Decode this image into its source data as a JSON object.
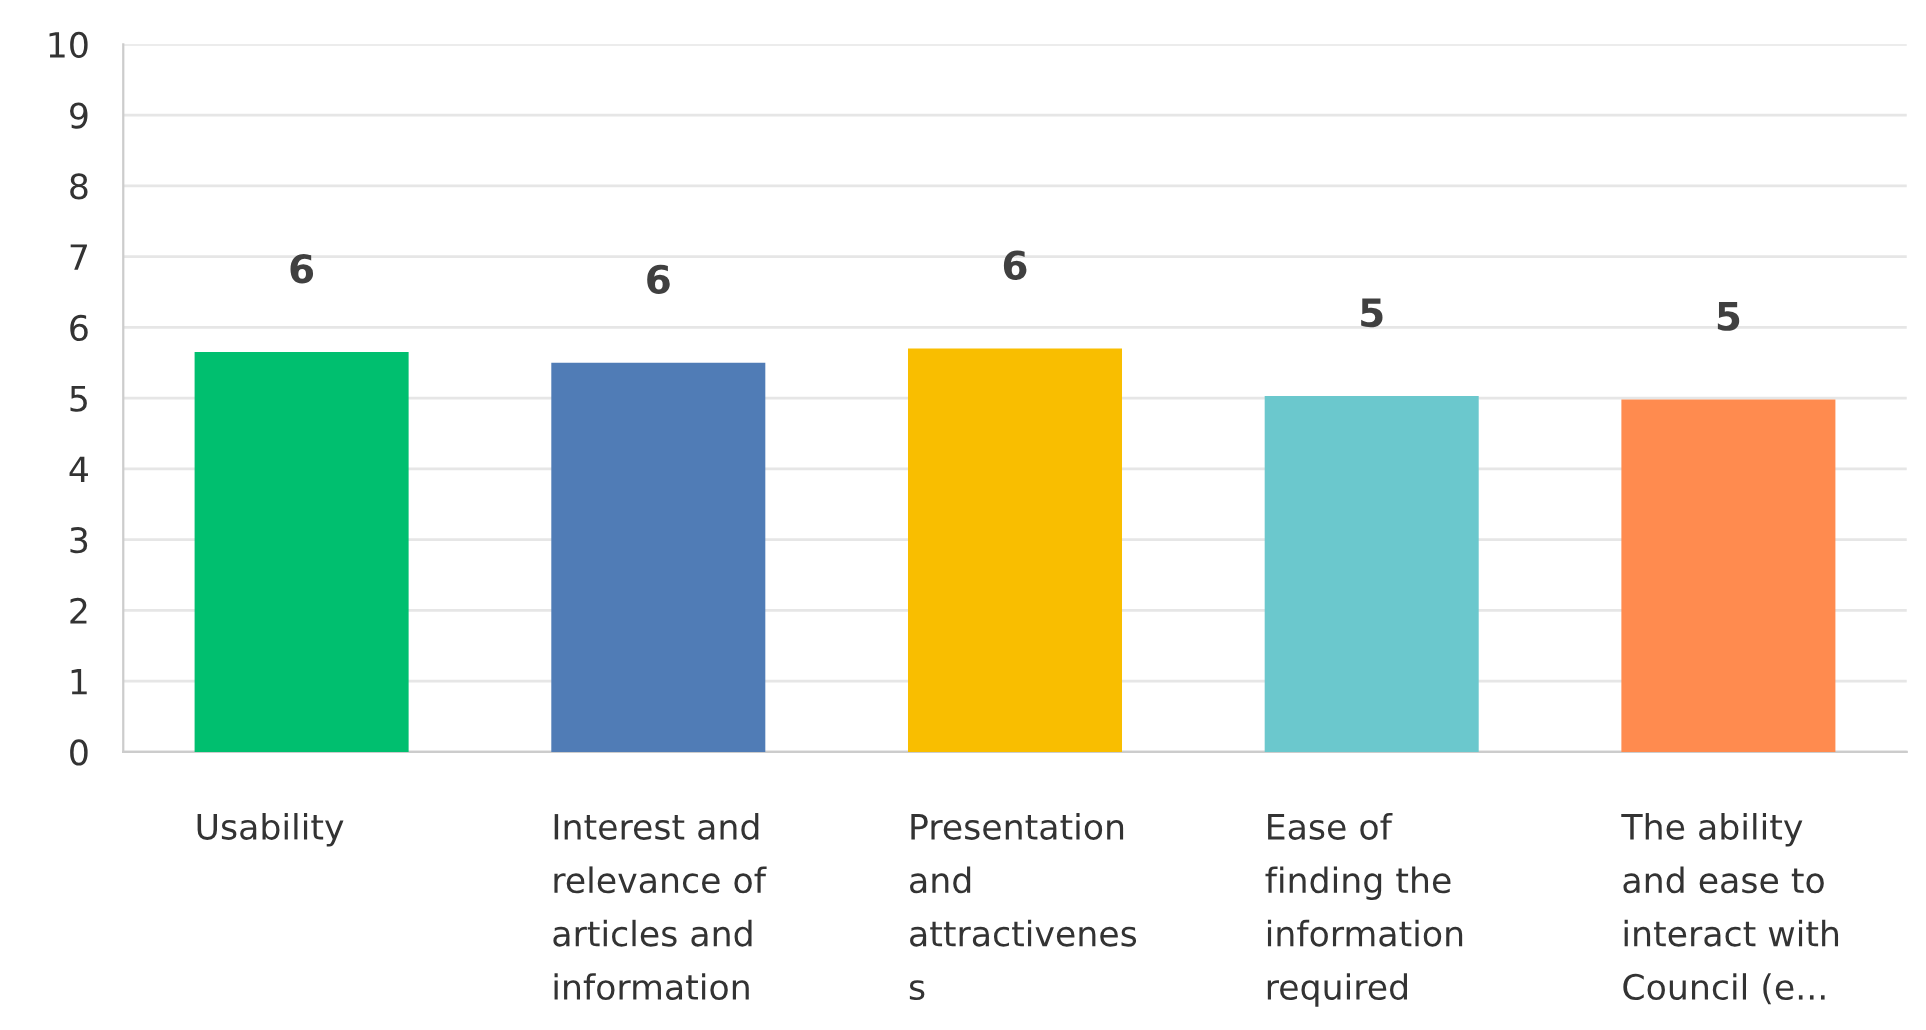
{
  "chart_data": {
    "type": "bar",
    "categories": [
      "Usability",
      "Interest and\nrelevance of\narticles and\ninformation",
      "Presentation\nand\nattractivenes\ns",
      "Ease of\nfinding the\ninformation\nrequired",
      "The ability\nand ease to\ninteract with\nCouncil (e..."
    ],
    "values": [
      5.65,
      5.5,
      5.7,
      5.03,
      4.98
    ],
    "value_labels": [
      "6",
      "6",
      "6",
      "5",
      "5"
    ],
    "colors": [
      "#00bf6f",
      "#507cb6",
      "#f9be00",
      "#6bc8cd",
      "#ff8b4f"
    ],
    "ylim": [
      0,
      10
    ],
    "yticks": [
      0,
      1,
      2,
      3,
      4,
      5,
      6,
      7,
      8,
      9,
      10
    ],
    "grid": "y",
    "legend": false
  }
}
